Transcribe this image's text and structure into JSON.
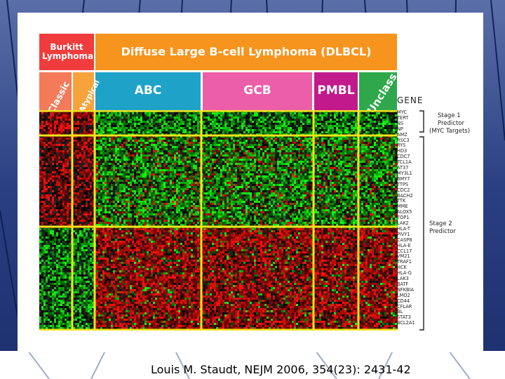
{
  "header": {
    "burkitt": "Burkitt Lymphoma",
    "dlbcl": "Diffuse Large B-cell Lymphoma (DLBCL)",
    "classic": "Classic",
    "atypical": "Atypical",
    "abc": "ABC",
    "gcb": "GCB",
    "pmbl": "PMBL",
    "unclass": "Unclass",
    "gene_label": "GENE"
  },
  "colors": {
    "burkitt": "#f03c3c",
    "dlbcl": "#f7941d",
    "classic": "#f47a5a",
    "atypical": "#f7a33c",
    "abc": "#1ea2c8",
    "gcb": "#ec5fa8",
    "pmbl": "#c21a8c",
    "unclass": "#2ea84a",
    "divider": "#f2e51c"
  },
  "genes": [
    "MYC",
    "TERT",
    "NS",
    "NP",
    "AMZ",
    "RSC3",
    "RYS",
    "HD3",
    "CDC7",
    "TCL1A",
    "AT37",
    "MY3L1",
    "BMY7",
    "TTPS",
    "CDC2",
    "BACH2",
    "TTK",
    "MME",
    "ALOX5",
    "TOP1",
    "LAK2",
    "HLA-T",
    "PIVY1",
    "CASP8",
    "HLA-E",
    "CCL17",
    "VM21",
    "TRAF1",
    "HCK",
    "HLA-G",
    "LAK3",
    "BATF",
    "NFKBIA",
    "LMO2",
    "CD44",
    "CFLAR",
    "BL",
    "STAT3",
    "BCL2A1"
  ],
  "notes": {
    "stage1_title": "Stage 1",
    "stage1_sub": "Predictor",
    "stage1_targets": "(MYC Targets)",
    "stage2_title": "Stage 2",
    "stage2_sub": "Predictor"
  },
  "citation": "Louis M. Staudt, NEJM 2006, 354(23): 2431-42"
}
